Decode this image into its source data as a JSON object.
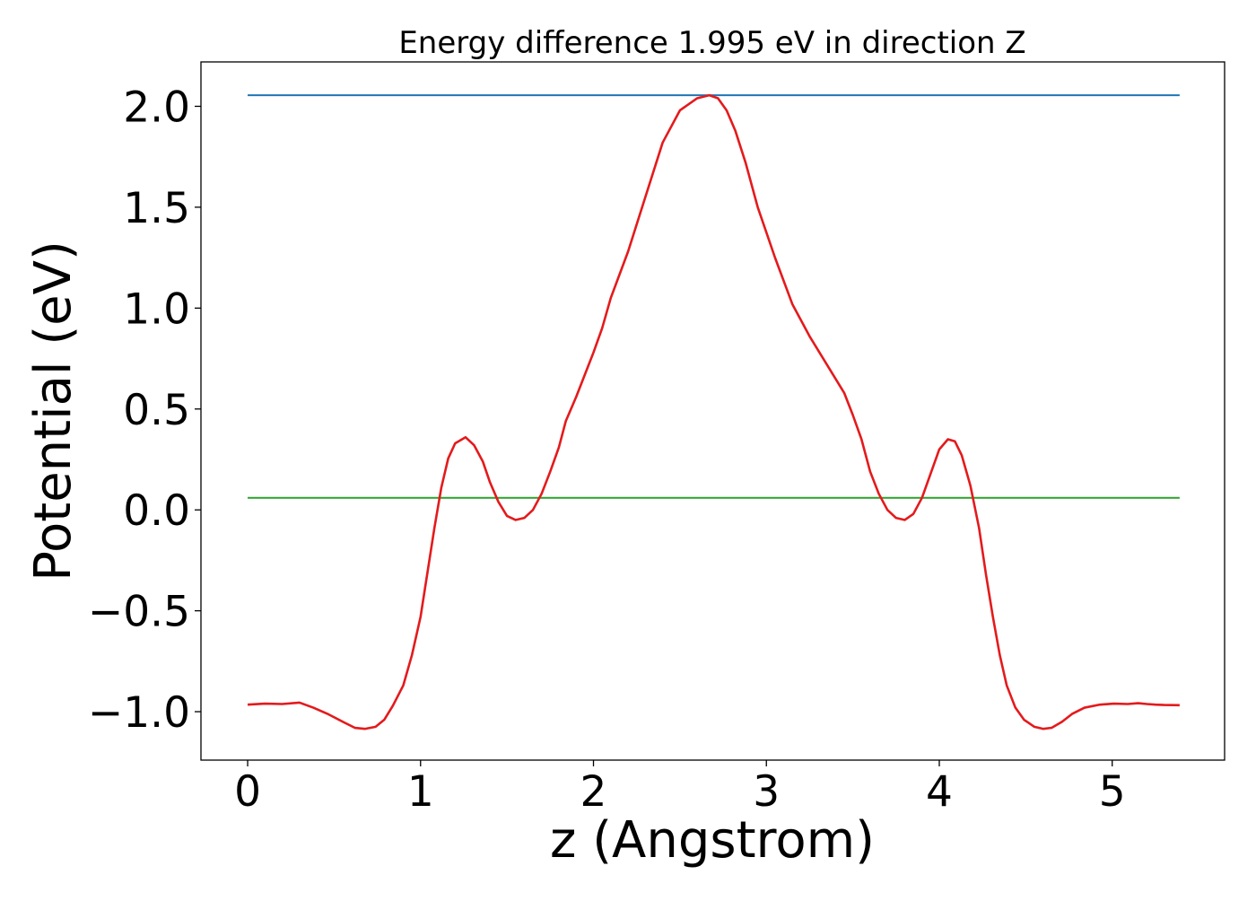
{
  "chart_data": {
    "type": "line",
    "title": "Energy difference 1.995 eV in direction Z",
    "xlabel": "z (Angstrom)",
    "ylabel": "Potential (eV)",
    "xlim": [
      -0.27,
      5.65
    ],
    "ylim": [
      -1.24,
      2.22
    ],
    "xticks": [
      0,
      1,
      2,
      3,
      4,
      5
    ],
    "xtick_labels": [
      "0",
      "1",
      "2",
      "3",
      "4",
      "5"
    ],
    "yticks": [
      -1.0,
      -0.5,
      0.0,
      0.5,
      1.0,
      1.5,
      2.0
    ],
    "ytick_labels": [
      "−1.0",
      "−0.5",
      "0.0",
      "0.5",
      "1.0",
      "1.5",
      "2.0"
    ],
    "grid": false,
    "series": [
      {
        "color": "#1f77b4",
        "x": [
          0.0,
          5.39
        ],
        "y": [
          2.055,
          2.055
        ]
      },
      {
        "color": "#2ca02c",
        "x": [
          0.0,
          5.39
        ],
        "y": [
          0.06,
          0.06
        ]
      },
      {
        "color": "#e41a1c",
        "x": [
          0.0,
          0.1,
          0.2,
          0.3,
          0.38,
          0.46,
          0.55,
          0.62,
          0.68,
          0.74,
          0.79,
          0.84,
          0.9,
          0.95,
          1.0,
          1.04,
          1.08,
          1.12,
          1.16,
          1.2,
          1.26,
          1.31,
          1.36,
          1.4,
          1.45,
          1.5,
          1.55,
          1.6,
          1.65,
          1.7,
          1.75,
          1.8,
          1.84,
          1.9,
          1.95,
          2.0,
          2.05,
          2.1,
          2.2,
          2.3,
          2.4,
          2.5,
          2.6,
          2.67,
          2.72,
          2.77,
          2.82,
          2.88,
          2.95,
          3.05,
          3.15,
          3.25,
          3.35,
          3.45,
          3.5,
          3.55,
          3.6,
          3.65,
          3.7,
          3.75,
          3.8,
          3.85,
          3.9,
          3.95,
          4.0,
          4.05,
          4.09,
          4.13,
          4.18,
          4.23,
          4.27,
          4.31,
          4.35,
          4.39,
          4.44,
          4.49,
          4.55,
          4.6,
          4.65,
          4.71,
          4.77,
          4.84,
          4.93,
          5.01,
          5.09,
          5.15,
          5.2,
          5.25,
          5.3,
          5.39
        ],
        "y": [
          -0.965,
          -0.96,
          -0.962,
          -0.955,
          -0.98,
          -1.01,
          -1.05,
          -1.08,
          -1.085,
          -1.075,
          -1.04,
          -0.97,
          -0.87,
          -0.72,
          -0.53,
          -0.31,
          -0.09,
          0.11,
          0.255,
          0.33,
          0.36,
          0.32,
          0.24,
          0.14,
          0.04,
          -0.03,
          -0.05,
          -0.04,
          0.0,
          0.08,
          0.19,
          0.31,
          0.44,
          0.56,
          0.67,
          0.78,
          0.9,
          1.05,
          1.28,
          1.55,
          1.82,
          1.98,
          2.04,
          2.055,
          2.04,
          1.98,
          1.88,
          1.72,
          1.5,
          1.25,
          1.02,
          0.86,
          0.72,
          0.58,
          0.47,
          0.35,
          0.19,
          0.08,
          0.0,
          -0.04,
          -0.05,
          -0.02,
          0.06,
          0.18,
          0.3,
          0.35,
          0.34,
          0.27,
          0.12,
          -0.09,
          -0.32,
          -0.53,
          -0.72,
          -0.87,
          -0.98,
          -1.04,
          -1.075,
          -1.085,
          -1.08,
          -1.05,
          -1.01,
          -0.98,
          -0.965,
          -0.96,
          -0.962,
          -0.958,
          -0.962,
          -0.965,
          -0.967,
          -0.968
        ]
      }
    ]
  }
}
